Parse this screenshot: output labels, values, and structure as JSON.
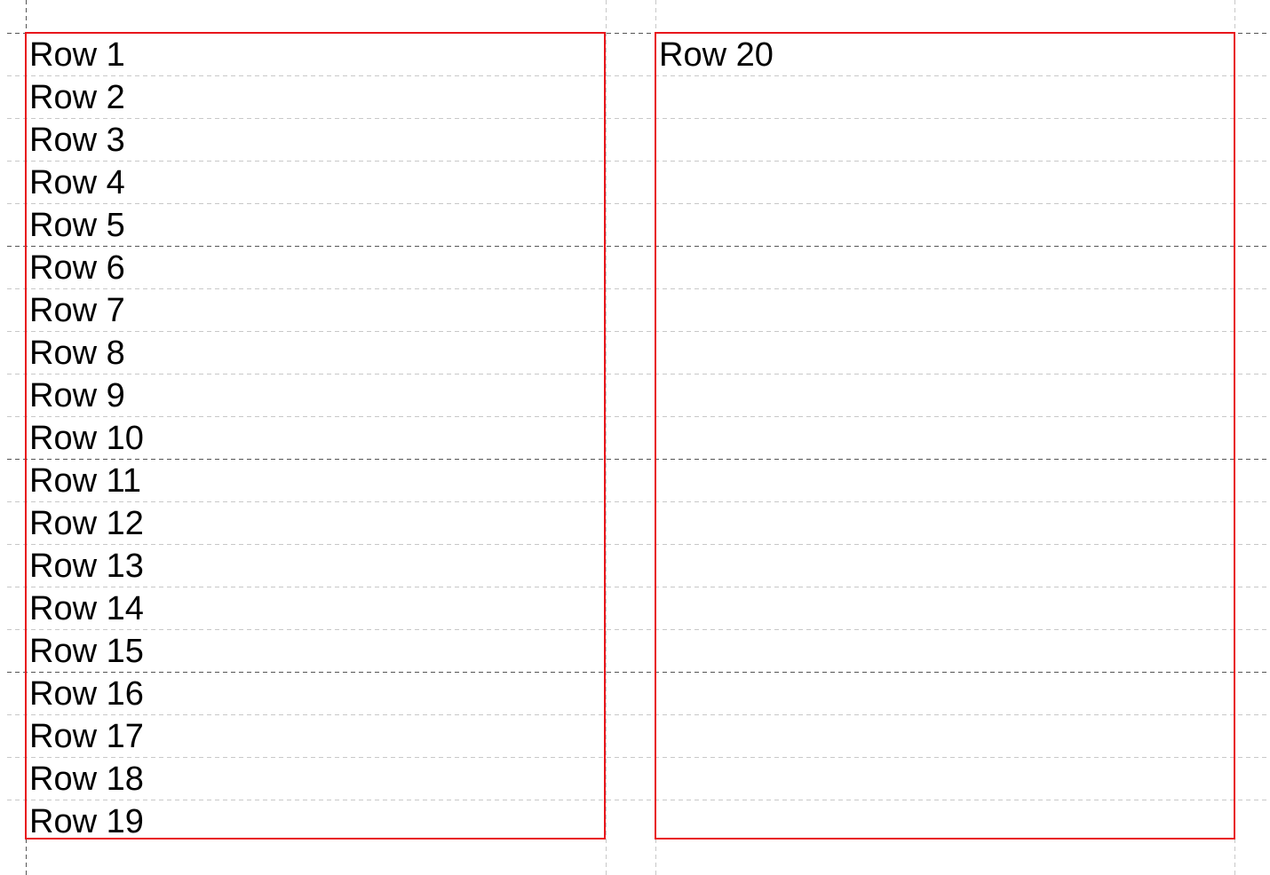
{
  "columns": [
    {
      "rows": [
        "Row 1",
        "Row 2",
        "Row 3",
        "Row 4",
        "Row 5",
        "Row 6",
        "Row 7",
        "Row 8",
        "Row 9",
        "Row 10",
        "Row 11",
        "Row 12",
        "Row 13",
        "Row 14",
        "Row 15",
        "Row 16",
        "Row 17",
        "Row 18",
        "Row 19"
      ]
    },
    {
      "rows": [
        "Row 20"
      ]
    }
  ],
  "colors": {
    "column_border": "#e8161c",
    "major_guide": "#555555",
    "minor_guide": "#c8c8c8",
    "text": "#000000"
  }
}
